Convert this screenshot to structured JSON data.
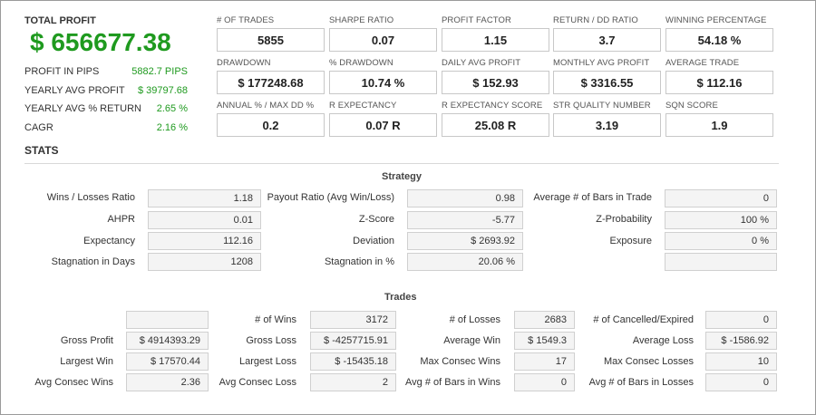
{
  "summary": {
    "total_profit_label": "TOTAL PROFIT",
    "total_profit_value": "$ 656677.38",
    "rows": [
      {
        "label": "PROFIT IN PIPS",
        "value": "5882.7 PIPS"
      },
      {
        "label": "YEARLY AVG PROFIT",
        "value": "$ 39797.68"
      },
      {
        "label": "YEARLY AVG % RETURN",
        "value": "2.65 %"
      },
      {
        "label": "CAGR",
        "value": "2.16 %"
      }
    ]
  },
  "metrics": [
    {
      "label": "# OF TRADES",
      "value": "5855"
    },
    {
      "label": "SHARPE RATIO",
      "value": "0.07"
    },
    {
      "label": "PROFIT FACTOR",
      "value": "1.15"
    },
    {
      "label": "RETURN / DD RATIO",
      "value": "3.7"
    },
    {
      "label": "WINNING PERCENTAGE",
      "value": "54.18 %"
    },
    {
      "label": "DRAWDOWN",
      "value": "$ 177248.68"
    },
    {
      "label": "% DRAWDOWN",
      "value": "10.74 %"
    },
    {
      "label": "DAILY AVG PROFIT",
      "value": "$ 152.93"
    },
    {
      "label": "MONTHLY AVG PROFIT",
      "value": "$ 3316.55"
    },
    {
      "label": "AVERAGE TRADE",
      "value": "$ 112.16"
    },
    {
      "label": "ANNUAL % / MAX DD %",
      "value": "0.2"
    },
    {
      "label": "R EXPECTANCY",
      "value": "0.07 R"
    },
    {
      "label": "R EXPECTANCY SCORE",
      "value": "25.08 R"
    },
    {
      "label": "STR QUALITY NUMBER",
      "value": "3.19"
    },
    {
      "label": "SQN SCORE",
      "value": "1.9"
    }
  ],
  "stats_title": "STATS",
  "strategy": {
    "title": "Strategy",
    "rows": [
      [
        {
          "label": "Wins / Losses Ratio",
          "value": "1.18"
        },
        {
          "label": "Payout Ratio (Avg Win/Loss)",
          "value": "0.98"
        },
        {
          "label": "Average # of Bars in Trade",
          "value": "0"
        }
      ],
      [
        {
          "label": "AHPR",
          "value": "0.01"
        },
        {
          "label": "Z-Score",
          "value": "-5.77"
        },
        {
          "label": "Z-Probability",
          "value": "100 %"
        }
      ],
      [
        {
          "label": "Expectancy",
          "value": "112.16"
        },
        {
          "label": "Deviation",
          "value": "$ 2693.92"
        },
        {
          "label": "Exposure",
          "value": "0 %"
        }
      ],
      [
        {
          "label": "Stagnation in Days",
          "value": "1208"
        },
        {
          "label": "Stagnation in %",
          "value": "20.06 %"
        },
        {
          "label": "",
          "value": ""
        }
      ]
    ]
  },
  "trades": {
    "title": "Trades",
    "rows": [
      [
        {
          "label": "",
          "value": ""
        },
        {
          "label": "# of Wins",
          "value": "3172"
        },
        {
          "label": "# of Losses",
          "value": "2683"
        },
        {
          "label": "# of Cancelled/Expired",
          "value": "0"
        }
      ],
      [
        {
          "label": "Gross Profit",
          "value": "$ 4914393.29"
        },
        {
          "label": "Gross Loss",
          "value": "$ -4257715.91"
        },
        {
          "label": "Average Win",
          "value": "$ 1549.3"
        },
        {
          "label": "Average Loss",
          "value": "$ -1586.92"
        }
      ],
      [
        {
          "label": "Largest Win",
          "value": "$ 17570.44"
        },
        {
          "label": "Largest Loss",
          "value": "$ -15435.18"
        },
        {
          "label": "Max Consec Wins",
          "value": "17"
        },
        {
          "label": "Max Consec Losses",
          "value": "10"
        }
      ],
      [
        {
          "label": "Avg Consec Wins",
          "value": "2.36"
        },
        {
          "label": "Avg Consec Loss",
          "value": "2"
        },
        {
          "label": "Avg # of Bars in Wins",
          "value": "0"
        },
        {
          "label": "Avg # of Bars in Losses",
          "value": "0"
        }
      ]
    ]
  },
  "colors": {
    "profit_green": "#1f9a1f"
  }
}
